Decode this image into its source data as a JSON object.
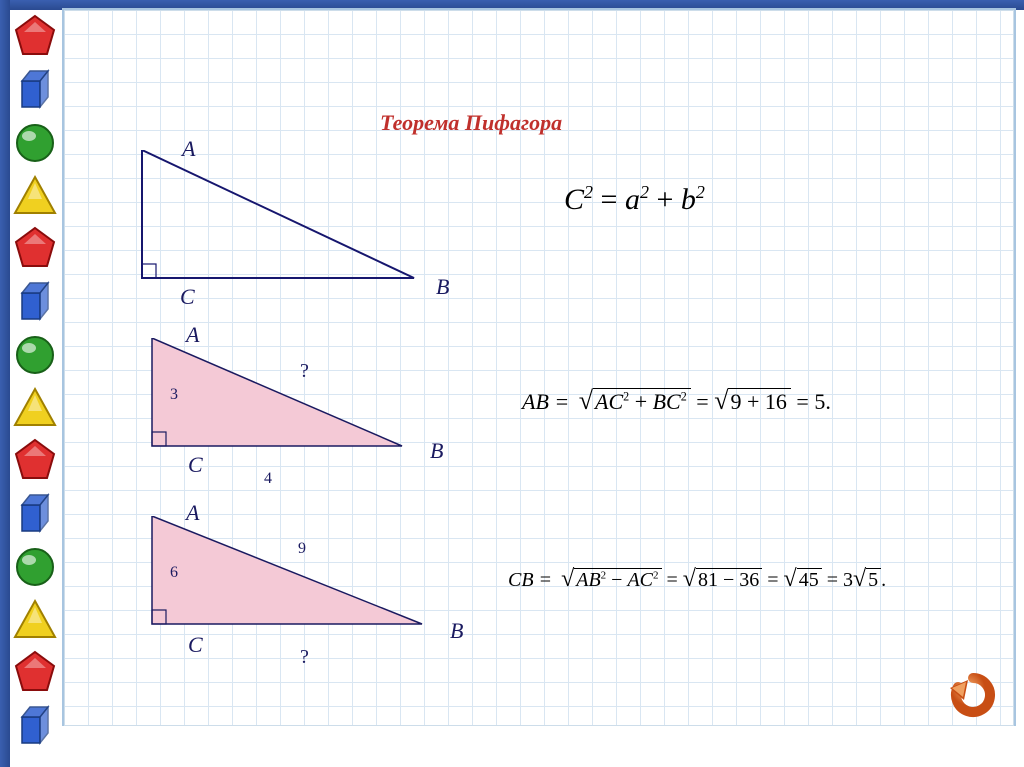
{
  "title": {
    "text": "Теорема Пифагора",
    "color": "#c0302c",
    "fontsize": 22
  },
  "formula_main": {
    "display": "C² = a² + b²",
    "fontsize": 30
  },
  "triangle1": {
    "type": "right-triangle",
    "vertices": {
      "A": "A",
      "B": "B",
      "C": "C"
    },
    "stroke": "#16166e",
    "fill": "none",
    "stroke_width": 2,
    "px": {
      "A": [
        18,
        0
      ],
      "C": [
        18,
        128
      ],
      "B": [
        290,
        128
      ]
    },
    "right_angle_at": "C"
  },
  "triangle2": {
    "type": "right-triangle",
    "vertices": {
      "A": "A",
      "B": "B",
      "C": "C"
    },
    "sides": {
      "AC": 3,
      "CB": 4,
      "AB_label": "?"
    },
    "fill": "#f4c9d6",
    "stroke": "#1a1a60",
    "stroke_width": 1.5,
    "px": {
      "A": [
        18,
        0
      ],
      "C": [
        18,
        108
      ],
      "B": [
        268,
        108
      ]
    },
    "right_angle_at": "C",
    "solution": {
      "prefix": "AB =",
      "radicand1": "AC² + BC²",
      "radicand2": "9 + 16",
      "result": "5."
    }
  },
  "triangle3": {
    "type": "right-triangle",
    "vertices": {
      "A": "A",
      "B": "B",
      "C": "C"
    },
    "sides": {
      "AC": 6,
      "AB": 9,
      "CB_label": "?"
    },
    "fill": "#f4c9d6",
    "stroke": "#1a1a60",
    "stroke_width": 1.5,
    "px": {
      "A": [
        18,
        0
      ],
      "C": [
        18,
        108
      ],
      "B": [
        288,
        108
      ]
    },
    "right_angle_at": "C",
    "solution": {
      "prefix": "CB =",
      "radicand1": "AB² − AC²",
      "radicand2": "81 − 36",
      "mid": "45",
      "result": "3√5."
    }
  },
  "sidebar_shapes": [
    {
      "type": "poly",
      "fill": "#e03030",
      "stroke": "#8a0c0c"
    },
    {
      "type": "cube",
      "fill": "#3060d0",
      "stroke": "#183a80"
    },
    {
      "type": "circle",
      "fill": "#30a030",
      "stroke": "#186018"
    },
    {
      "type": "tri",
      "fill": "#f0d020",
      "stroke": "#a08000"
    },
    {
      "type": "penta",
      "fill": "#e03030",
      "stroke": "#8a0c0c"
    },
    {
      "type": "cube",
      "fill": "#3060d0",
      "stroke": "#183a80"
    },
    {
      "type": "circle",
      "fill": "#30a030",
      "stroke": "#186018"
    },
    {
      "type": "tri",
      "fill": "#f0d020",
      "stroke": "#a08000"
    },
    {
      "type": "penta",
      "fill": "#e03030",
      "stroke": "#8a0c0c"
    },
    {
      "type": "cube",
      "fill": "#3060d0",
      "stroke": "#183a80"
    },
    {
      "type": "circle",
      "fill": "#30a030",
      "stroke": "#186018"
    },
    {
      "type": "tri",
      "fill": "#f0d020",
      "stroke": "#a08000"
    },
    {
      "type": "penta",
      "fill": "#e03030",
      "stroke": "#8a0c0c"
    },
    {
      "type": "cube",
      "fill": "#3060d0",
      "stroke": "#183a80"
    }
  ],
  "refresh_button": {
    "color": "#c84e14",
    "highlight": "#f0a060"
  },
  "colors": {
    "grid": "#d9e6f2",
    "grid_border": "#a8c5e0",
    "label": "#1a1a60",
    "band": "#2a4a90"
  }
}
